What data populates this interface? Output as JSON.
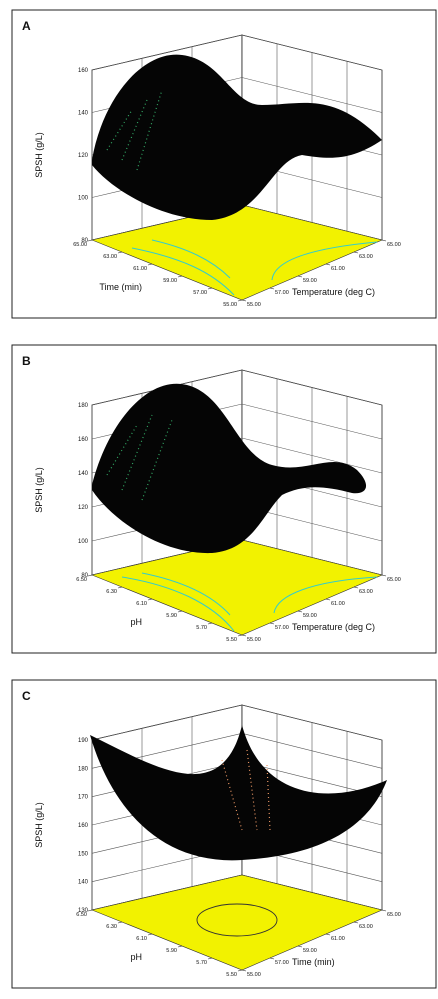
{
  "chart_data": [
    {
      "type": "surface3d",
      "title": "A",
      "zlabel": "SPSH (g/L)",
      "xlabel": "Time (min)",
      "ylabel": "Temperature (deg C)",
      "zlim": [
        80,
        160
      ],
      "zticks": [
        80,
        100,
        120,
        140,
        160
      ],
      "xlim": [
        55,
        65
      ],
      "xticks": [
        {
          "value": 65,
          "label": "65.00"
        },
        {
          "value": 63,
          "label": "63.00"
        },
        {
          "value": 61,
          "label": "61.00"
        },
        {
          "value": 59,
          "label": "59.00"
        },
        {
          "value": 57,
          "label": "57.00"
        },
        {
          "value": 55,
          "label": "55.00"
        }
      ],
      "ylim": [
        55,
        65
      ],
      "yticks": [
        {
          "value": 55,
          "label": "55.00"
        },
        {
          "value": 57,
          "label": "57.00"
        },
        {
          "value": 59,
          "label": "59.00"
        },
        {
          "value": 61,
          "label": "61.00"
        },
        {
          "value": 63,
          "label": "63.00"
        },
        {
          "value": 65,
          "label": "65.00"
        }
      ]
    },
    {
      "type": "surface3d",
      "title": "B",
      "zlabel": "SPSH (g/L)",
      "xlabel": "pH",
      "ylabel": "Temperature (deg C)",
      "zlim": [
        80,
        180
      ],
      "zticks": [
        80,
        100,
        120,
        140,
        160,
        180
      ],
      "xlim": [
        5.5,
        6.5
      ],
      "xticks": [
        {
          "value": 6.5,
          "label": "6.50"
        },
        {
          "value": 6.3,
          "label": "6.30"
        },
        {
          "value": 6.1,
          "label": "6.10"
        },
        {
          "value": 5.9,
          "label": "5.90"
        },
        {
          "value": 5.7,
          "label": "5.70"
        },
        {
          "value": 5.5,
          "label": "5.50"
        }
      ],
      "ylim": [
        55,
        65
      ],
      "yticks": [
        {
          "value": 55,
          "label": "55.00"
        },
        {
          "value": 57,
          "label": "57.00"
        },
        {
          "value": 59,
          "label": "59.00"
        },
        {
          "value": 61,
          "label": "61.00"
        },
        {
          "value": 63,
          "label": "63.00"
        },
        {
          "value": 65,
          "label": "65.00"
        }
      ]
    },
    {
      "type": "surface3d",
      "title": "C",
      "zlabel": "SPSH (g/L)",
      "xlabel": "pH",
      "ylabel": "Time (min)",
      "zlim": [
        130,
        190
      ],
      "zticks": [
        130,
        140,
        150,
        160,
        170,
        180,
        190
      ],
      "xlim": [
        5.5,
        6.5
      ],
      "xticks": [
        {
          "value": 6.5,
          "label": "6.50"
        },
        {
          "value": 6.3,
          "label": "6.30"
        },
        {
          "value": 6.1,
          "label": "6.10"
        },
        {
          "value": 5.9,
          "label": "5.90"
        },
        {
          "value": 5.7,
          "label": "5.70"
        },
        {
          "value": 5.5,
          "label": "5.50"
        }
      ],
      "ylim": [
        55,
        65
      ],
      "yticks": [
        {
          "value": 55,
          "label": "55.00"
        },
        {
          "value": 57,
          "label": "57.00"
        },
        {
          "value": 59,
          "label": "59.00"
        },
        {
          "value": 61,
          "label": "61.00"
        },
        {
          "value": 63,
          "label": "63.00"
        },
        {
          "value": 65,
          "label": "65.00"
        }
      ]
    }
  ]
}
